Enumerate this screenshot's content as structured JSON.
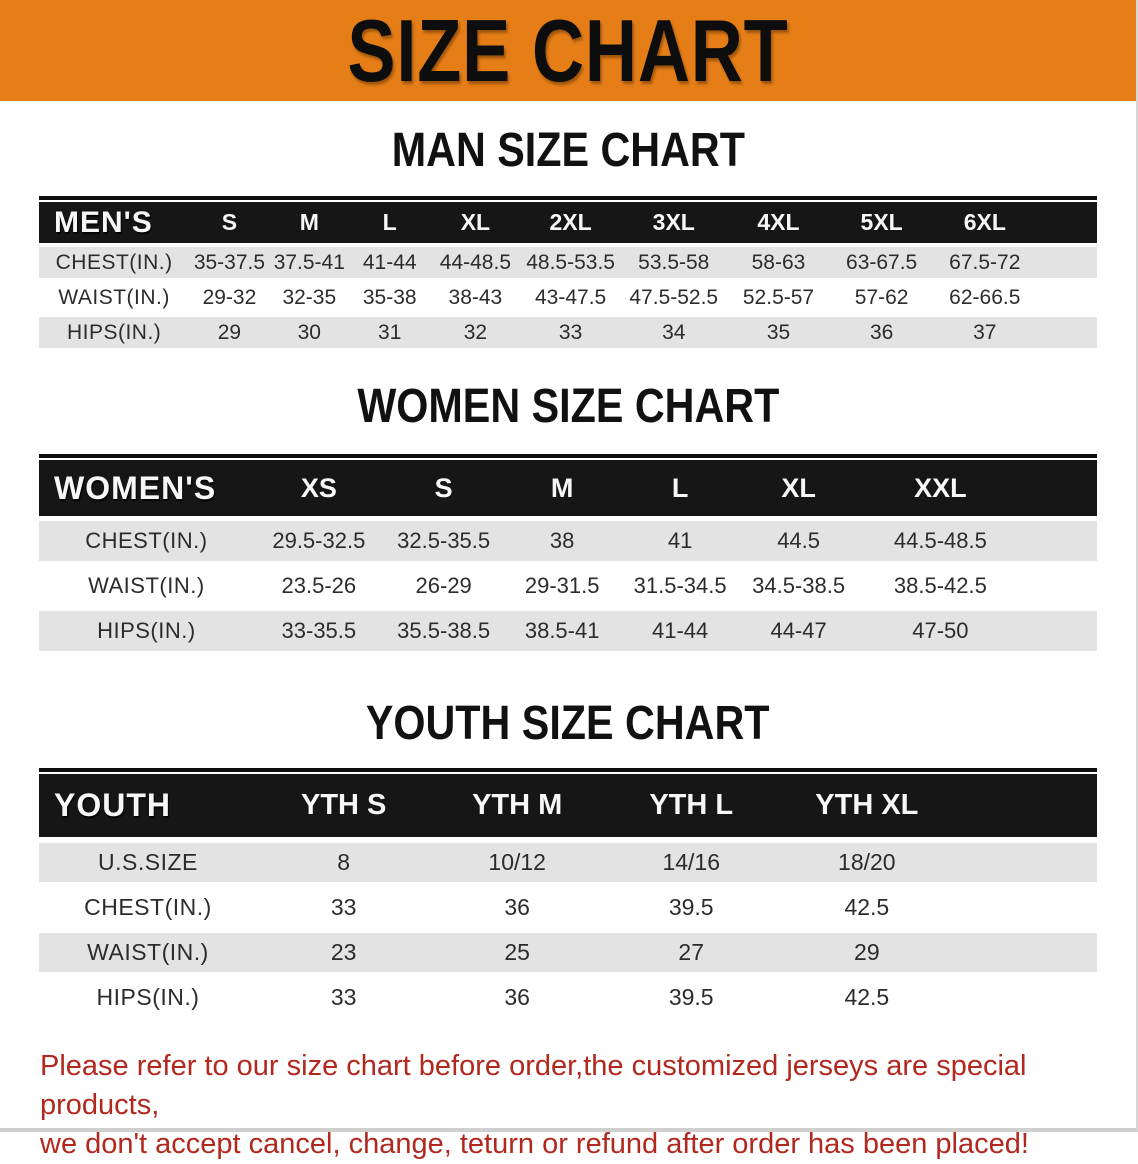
{
  "banner": {
    "title": "SIZE CHART",
    "bg_color": "#e67e17"
  },
  "colors": {
    "header_bg": "#161616",
    "row_gray": "#e3e3e3",
    "disclaimer_red": "#b2281e"
  },
  "men": {
    "heading": "MAN SIZE CHART",
    "table": {
      "header": [
        "MEN'S",
        "S",
        "M",
        "L",
        "XL",
        "2XL",
        "3XL",
        "4XL",
        "5XL",
        "6XL"
      ],
      "rows": [
        [
          "CHEST(IN.)",
          "35-37.5",
          "37.5-41",
          "41-44",
          "44-48.5",
          "48.5-53.5",
          "53.5-58",
          "58-63",
          "63-67.5",
          "67.5-72"
        ],
        [
          "WAIST(IN.)",
          "29-32",
          "32-35",
          "35-38",
          "38-43",
          "43-47.5",
          "47.5-52.5",
          "52.5-57",
          "57-62",
          "62-66.5"
        ],
        [
          "HIPS(IN.)",
          "29",
          "30",
          "31",
          "32",
          "33",
          "34",
          "35",
          "36",
          "37"
        ]
      ]
    }
  },
  "women": {
    "heading": "WOMEN SIZE CHART",
    "table": {
      "header": [
        "WOMEN'S",
        "XS",
        "S",
        "M",
        "L",
        "XL",
        "XXL"
      ],
      "rows": [
        [
          "CHEST(IN.)",
          "29.5-32.5",
          "32.5-35.5",
          "38",
          "41",
          "44.5",
          "44.5-48.5"
        ],
        [
          "WAIST(IN.)",
          "23.5-26",
          "26-29",
          "29-31.5",
          "31.5-34.5",
          "34.5-38.5",
          "38.5-42.5"
        ],
        [
          "HIPS(IN.)",
          "33-35.5",
          "35.5-38.5",
          "38.5-41",
          "41-44",
          "44-47",
          "47-50"
        ]
      ]
    }
  },
  "youth": {
    "heading": "YOUTH SIZE CHART",
    "table": {
      "header": [
        "YOUTH",
        "YTH S",
        "YTH M",
        "YTH L",
        "YTH XL"
      ],
      "rows": [
        [
          "U.S.SIZE",
          "8",
          "10/12",
          "14/16",
          "18/20"
        ],
        [
          "CHEST(IN.)",
          "33",
          "36",
          "39.5",
          "42.5"
        ],
        [
          "WAIST(IN.)",
          "23",
          "25",
          "27",
          "29"
        ],
        [
          "HIPS(IN.)",
          "33",
          "36",
          "39.5",
          "42.5"
        ]
      ]
    }
  },
  "disclaimer": {
    "line1": "Please refer to our size chart before order,the customized jerseys are special products,",
    "line2": "we don't accept cancel, change, teturn or refund after order has been placed!"
  }
}
